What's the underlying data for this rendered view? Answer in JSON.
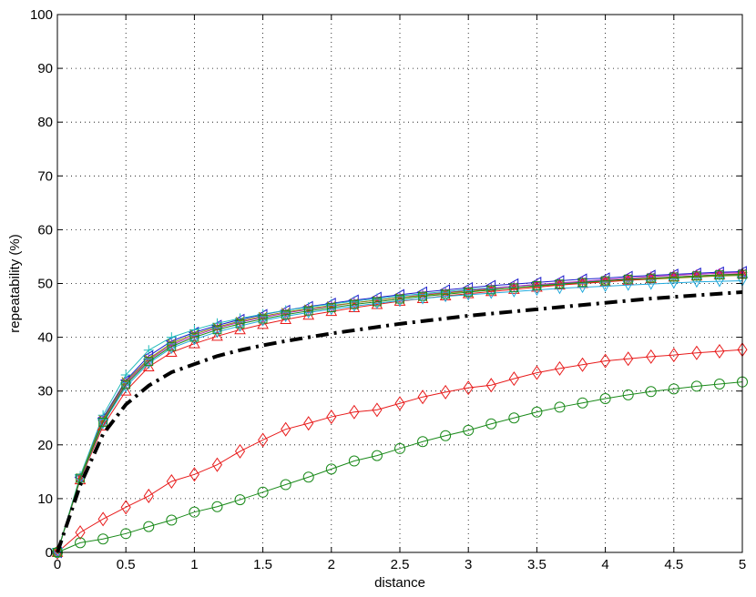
{
  "chart_data": {
    "type": "line",
    "title": "",
    "xlabel": "distance",
    "ylabel": "repeatability (%)",
    "xlim": [
      0,
      5
    ],
    "ylim": [
      0,
      100
    ],
    "xticks": [
      0,
      0.5,
      1,
      1.5,
      2,
      2.5,
      3,
      3.5,
      4,
      4.5,
      5
    ],
    "xtick_labels": [
      "0",
      "0.5",
      "1",
      "1.5",
      "2",
      "2.5",
      "3",
      "3.5",
      "4",
      "4.5",
      "5"
    ],
    "yticks": [
      0,
      10,
      20,
      30,
      40,
      50,
      60,
      70,
      80,
      90,
      100
    ],
    "ytick_labels": [
      "0",
      "10",
      "20",
      "30",
      "40",
      "50",
      "60",
      "70",
      "80",
      "90",
      "100"
    ],
    "grid": true,
    "legend": "none",
    "x": [
      0,
      0.1667,
      0.3333,
      0.5,
      0.6667,
      0.8333,
      1.0,
      1.1667,
      1.3333,
      1.5,
      1.6667,
      1.8333,
      2.0,
      2.1667,
      2.3333,
      2.5,
      2.6667,
      2.8333,
      3.0,
      3.1667,
      3.3333,
      3.5,
      3.6667,
      3.8333,
      4.0,
      4.1667,
      4.3333,
      4.5,
      4.6667,
      4.8333,
      5.0
    ],
    "series": [
      {
        "color": "#000000",
        "marker": "none",
        "style": "dashdot-thick",
        "values": [
          0,
          12.5,
          22.0,
          27.5,
          31.0,
          33.5,
          35.0,
          36.5,
          37.6,
          38.5,
          39.3,
          40.0,
          40.7,
          41.3,
          41.9,
          42.5,
          43.0,
          43.5,
          44.0,
          44.4,
          44.8,
          45.2,
          45.6,
          46.0,
          46.4,
          46.8,
          47.2,
          47.5,
          47.8,
          48.1,
          48.4
        ]
      },
      {
        "color": "#e81a1a",
        "marker": "diamond",
        "style": "solid",
        "values": [
          0,
          3.7,
          6.2,
          8.4,
          10.5,
          13.2,
          14.5,
          16.3,
          18.8,
          20.9,
          22.9,
          24.0,
          25.2,
          26.1,
          26.5,
          27.7,
          28.9,
          29.8,
          30.6,
          31.1,
          32.3,
          33.4,
          34.2,
          34.9,
          35.6,
          36.0,
          36.4,
          36.7,
          37.1,
          37.4,
          37.7
        ]
      },
      {
        "color": "#1a8a1a",
        "marker": "circle",
        "style": "solid",
        "values": [
          0,
          1.8,
          2.5,
          3.5,
          4.8,
          6.0,
          7.5,
          8.5,
          9.8,
          11.2,
          12.6,
          14.0,
          15.5,
          17.0,
          18.0,
          19.3,
          20.6,
          21.7,
          22.7,
          23.9,
          25.0,
          26.1,
          27.0,
          27.8,
          28.6,
          29.3,
          29.9,
          30.4,
          30.9,
          31.3,
          31.7
        ]
      },
      {
        "color": "#1a1acc",
        "marker": "triangle-left",
        "style": "solid",
        "values": [
          0,
          14.0,
          25.0,
          32.0,
          36.5,
          39.3,
          40.9,
          42.2,
          43.3,
          44.2,
          45.0,
          45.7,
          46.3,
          46.9,
          47.4,
          47.9,
          48.4,
          48.8,
          49.2,
          49.6,
          49.9,
          50.2,
          50.5,
          50.8,
          51.0,
          51.3,
          51.5,
          51.7,
          51.9,
          52.1,
          52.2
        ]
      },
      {
        "color": "#22bbbb",
        "marker": "plus",
        "style": "solid",
        "values": [
          0,
          14.2,
          25.5,
          33.0,
          37.6,
          40.0,
          41.4,
          42.6,
          43.5,
          44.3,
          45.0,
          45.6,
          46.2,
          46.7,
          47.2,
          47.7,
          48.1,
          48.5,
          48.9,
          49.2,
          49.5,
          49.8,
          50.0,
          50.3,
          50.5,
          50.7,
          50.9,
          51.1,
          51.3,
          51.5,
          51.6
        ]
      },
      {
        "color": "#bb22bb",
        "marker": "star",
        "style": "solid",
        "values": [
          0,
          13.8,
          24.5,
          31.5,
          35.8,
          38.6,
          40.3,
          41.7,
          42.8,
          43.7,
          44.5,
          45.2,
          45.8,
          46.4,
          46.9,
          47.4,
          47.9,
          48.3,
          48.7,
          49.1,
          49.5,
          49.8,
          50.1,
          50.4,
          50.7,
          51.0,
          51.3,
          51.5,
          51.7,
          51.9,
          52.0
        ]
      },
      {
        "color": "#888800",
        "marker": "x",
        "style": "solid",
        "values": [
          0,
          13.9,
          24.7,
          31.8,
          36.0,
          38.9,
          40.6,
          41.9,
          43.0,
          43.9,
          44.7,
          45.3,
          45.9,
          46.4,
          46.9,
          47.4,
          47.8,
          48.2,
          48.6,
          48.9,
          49.2,
          49.5,
          49.8,
          50.1,
          50.4,
          50.6,
          50.8,
          51.0,
          51.2,
          51.4,
          51.5
        ]
      },
      {
        "color": "#e81a1a",
        "marker": "triangle-up",
        "style": "solid",
        "values": [
          0,
          13.5,
          23.5,
          30.0,
          34.5,
          37.2,
          38.8,
          40.2,
          41.4,
          42.4,
          43.3,
          44.1,
          44.8,
          45.5,
          46.1,
          46.7,
          47.2,
          47.7,
          48.1,
          48.5,
          48.9,
          49.3,
          49.7,
          50.0,
          50.3,
          50.6,
          50.9,
          51.2,
          51.4,
          51.6,
          51.8
        ]
      },
      {
        "color": "#22aadd",
        "marker": "triangle-down",
        "style": "solid",
        "values": [
          0,
          13.7,
          24.0,
          30.8,
          35.2,
          38.0,
          39.6,
          41.0,
          42.1,
          43.1,
          43.9,
          44.6,
          45.2,
          45.8,
          46.3,
          46.8,
          47.2,
          47.6,
          47.9,
          48.2,
          48.5,
          48.8,
          49.1,
          49.3,
          49.5,
          49.7,
          49.9,
          50.1,
          50.3,
          50.4,
          50.5
        ]
      },
      {
        "color": "#1a8a1a",
        "marker": "square",
        "style": "solid",
        "values": [
          0,
          13.8,
          24.2,
          31.2,
          35.5,
          38.3,
          40.0,
          41.4,
          42.5,
          43.4,
          44.2,
          44.9,
          45.5,
          46.1,
          46.6,
          47.1,
          47.6,
          48.0,
          48.4,
          48.8,
          49.2,
          49.6,
          49.9,
          50.2,
          50.5,
          50.8,
          51.0,
          51.2,
          51.4,
          51.6,
          51.7
        ]
      }
    ]
  }
}
